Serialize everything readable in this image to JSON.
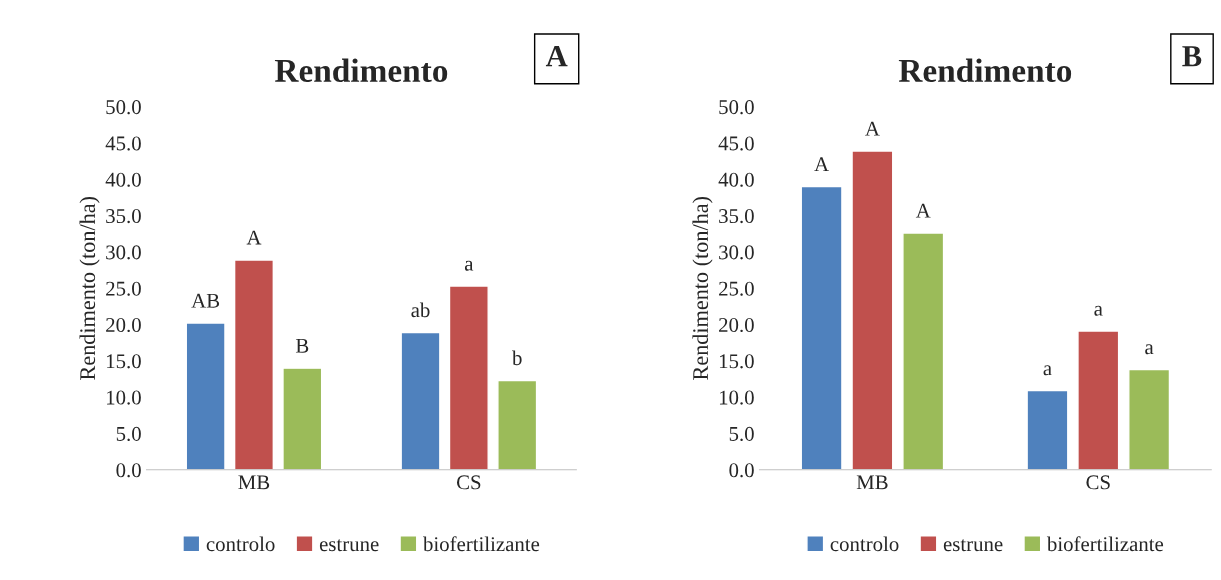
{
  "chart_data": [
    {
      "type": "bar",
      "title": "Rendimento",
      "ylabel": "Rendimento (ton/ha)",
      "categories": [
        "MB",
        "CS"
      ],
      "ylim": [
        0,
        50
      ],
      "yticks": [
        {
          "value": 0,
          "label": "0.0"
        },
        {
          "value": 5,
          "label": "5.0"
        },
        {
          "value": 10,
          "label": "10.0"
        },
        {
          "value": 15,
          "label": "15.0"
        },
        {
          "value": 20,
          "label": "20.0"
        },
        {
          "value": 25,
          "label": "25.0"
        },
        {
          "value": 30,
          "label": "30.0"
        },
        {
          "value": 35,
          "label": "35.0"
        },
        {
          "value": 40,
          "label": "40.0"
        },
        {
          "value": 45,
          "label": "45.0"
        },
        {
          "value": 50,
          "label": "50.0"
        }
      ],
      "grid": false,
      "legend": "bottom",
      "annotations": [
        "A"
      ],
      "series": [
        {
          "name": "controlo",
          "color": "#4f81bd",
          "values": [
            20.2,
            18.9
          ],
          "value_labels": [
            "AB",
            "ab"
          ]
        },
        {
          "name": "estrune",
          "color": "#c0504d",
          "values": [
            28.9,
            25.3
          ],
          "value_labels": [
            "A",
            "a"
          ]
        },
        {
          "name": "biofertilizante",
          "color": "#9bbb59",
          "values": [
            14.0,
            12.3
          ],
          "value_labels": [
            "B",
            "b"
          ]
        }
      ]
    },
    {
      "type": "bar",
      "title": "Rendimento",
      "ylabel": "Rendimento (ton/ha)",
      "categories": [
        "MB",
        "CS"
      ],
      "ylim": [
        0,
        50
      ],
      "yticks": [
        {
          "value": 0,
          "label": "0.0"
        },
        {
          "value": 5,
          "label": "5.0"
        },
        {
          "value": 10,
          "label": "10.0"
        },
        {
          "value": 15,
          "label": "15.0"
        },
        {
          "value": 20,
          "label": "20.0"
        },
        {
          "value": 25,
          "label": "25.0"
        },
        {
          "value": 30,
          "label": "30.0"
        },
        {
          "value": 35,
          "label": "35.0"
        },
        {
          "value": 40,
          "label": "40.0"
        },
        {
          "value": 45,
          "label": "45.0"
        },
        {
          "value": 50,
          "label": "50.0"
        }
      ],
      "grid": false,
      "legend": "bottom",
      "annotations": [
        "B"
      ],
      "series": [
        {
          "name": "controlo",
          "color": "#4f81bd",
          "values": [
            39.0,
            10.9
          ],
          "value_labels": [
            "A",
            "a"
          ]
        },
        {
          "name": "estrune",
          "color": "#c0504d",
          "values": [
            43.9,
            19.1
          ],
          "value_labels": [
            "A",
            "a"
          ]
        },
        {
          "name": "biofertilizante",
          "color": "#9bbb59",
          "values": [
            32.6,
            13.8
          ],
          "value_labels": [
            "A",
            "a"
          ]
        }
      ]
    }
  ]
}
